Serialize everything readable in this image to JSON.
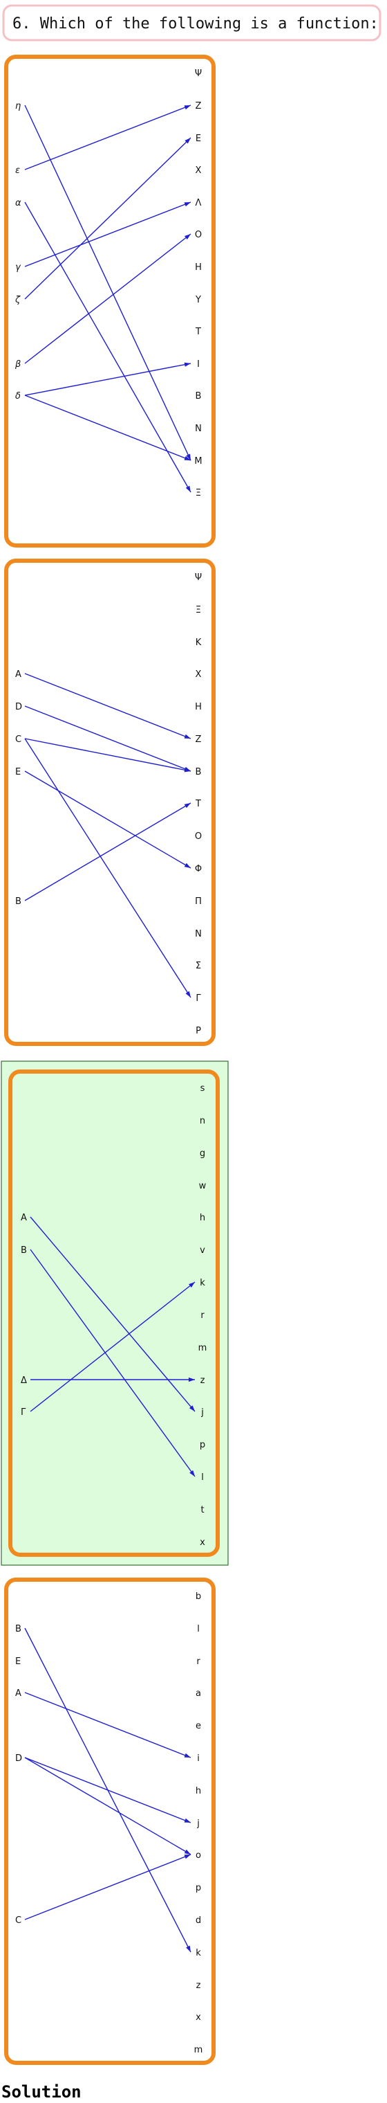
{
  "question": "6. Which of the following is a function:",
  "solution_label": "Solution",
  "colors": {
    "question_border": "#f4c2c6",
    "panel_border": "#f08a1e",
    "arrow": "#1f1fd1",
    "highlight_fill": "#ddfcdc",
    "highlight_border": "#3a6b3a"
  },
  "options": [
    {
      "highlighted": false,
      "domain": [
        "η",
        "ε",
        "α",
        "γ",
        "ζ",
        "β",
        "δ"
      ],
      "codomain": [
        "Ψ",
        "Z",
        "E",
        "X",
        "Λ",
        "O",
        "H",
        "Y",
        "T",
        "I",
        "B",
        "N",
        "M",
        "Ξ"
      ],
      "mapping": [
        [
          "η",
          "M"
        ],
        [
          "ε",
          "Z"
        ],
        [
          "α",
          "Ξ"
        ],
        [
          "γ",
          "Λ"
        ],
        [
          "ζ",
          "E"
        ],
        [
          "β",
          "O"
        ],
        [
          "δ",
          "I"
        ],
        [
          "δ",
          "M"
        ]
      ]
    },
    {
      "highlighted": false,
      "domain": [
        "A",
        "D",
        "C",
        "E",
        "B"
      ],
      "codomain": [
        "Ψ",
        "Ξ",
        "K",
        "X",
        "H",
        "Z",
        "B",
        "T",
        "O",
        "Φ",
        "Π",
        "N",
        "Σ",
        "Γ",
        "P"
      ],
      "mapping": [
        [
          "A",
          "Z"
        ],
        [
          "D",
          "B"
        ],
        [
          "C",
          "B"
        ],
        [
          "C",
          "Γ"
        ],
        [
          "E",
          "Φ"
        ],
        [
          "B",
          "T"
        ]
      ]
    },
    {
      "highlighted": true,
      "domain": [
        "A",
        "B",
        "Δ",
        "Γ"
      ],
      "codomain": [
        "s",
        "n",
        "g",
        "w",
        "h",
        "v",
        "k",
        "r",
        "m",
        "z",
        "j",
        "p",
        "l",
        "t",
        "x"
      ],
      "mapping": [
        [
          "A",
          "j"
        ],
        [
          "B",
          "l"
        ],
        [
          "Δ",
          "z"
        ],
        [
          "Γ",
          "k"
        ]
      ]
    },
    {
      "highlighted": false,
      "domain": [
        "B",
        "E",
        "A",
        "D",
        "C"
      ],
      "codomain": [
        "b",
        "l",
        "r",
        "a",
        "e",
        "i",
        "h",
        "j",
        "o",
        "p",
        "d",
        "k",
        "z",
        "x",
        "m"
      ],
      "mapping": [
        [
          "B",
          "k"
        ],
        [
          "A",
          "i"
        ],
        [
          "D",
          "j"
        ],
        [
          "D",
          "o"
        ],
        [
          "C",
          "o"
        ]
      ]
    }
  ]
}
